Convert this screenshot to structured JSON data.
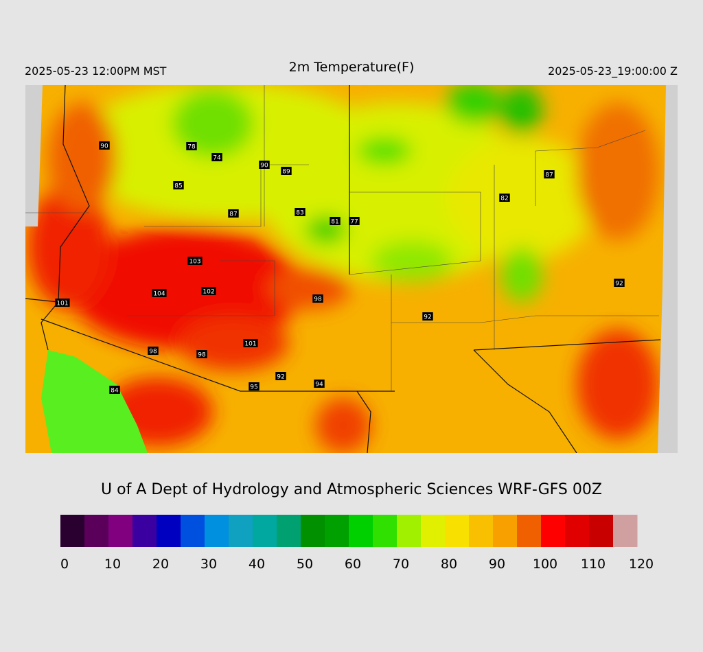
{
  "header": {
    "valid_local": "2025-05-23 12:00PM MST",
    "title": "2m Temperature(F)",
    "valid_utc": "2025-05-23_19:00:00 Z"
  },
  "stations": [
    90,
    78,
    74,
    90,
    89,
    85,
    87,
    83,
    81,
    77,
    82,
    87,
    103,
    104,
    102,
    98,
    101,
    92,
    92,
    101,
    98,
    98,
    92,
    95,
    94,
    84
  ],
  "credit": "U of A Dept of Hydrology and Atmospheric Sciences WRF-GFS 00Z",
  "colorbar": {
    "lim": [
      0,
      120
    ],
    "ticks": [
      0,
      10,
      20,
      30,
      40,
      50,
      60,
      70,
      80,
      90,
      100,
      110,
      120
    ],
    "colors": [
      "#2a0030",
      "#5a005a",
      "#800080",
      "#3a00a0",
      "#0000c0",
      "#0050e0",
      "#0090e0",
      "#10a0c0",
      "#00a8a0",
      "#00a070",
      "#009000",
      "#00a000",
      "#00d000",
      "#30e000",
      "#a0f000",
      "#e0f000",
      "#f8e000",
      "#f8c000",
      "#f8a000",
      "#f06000",
      "#ff0000",
      "#e00000",
      "#c80000",
      "#d0a0a0"
    ]
  }
}
